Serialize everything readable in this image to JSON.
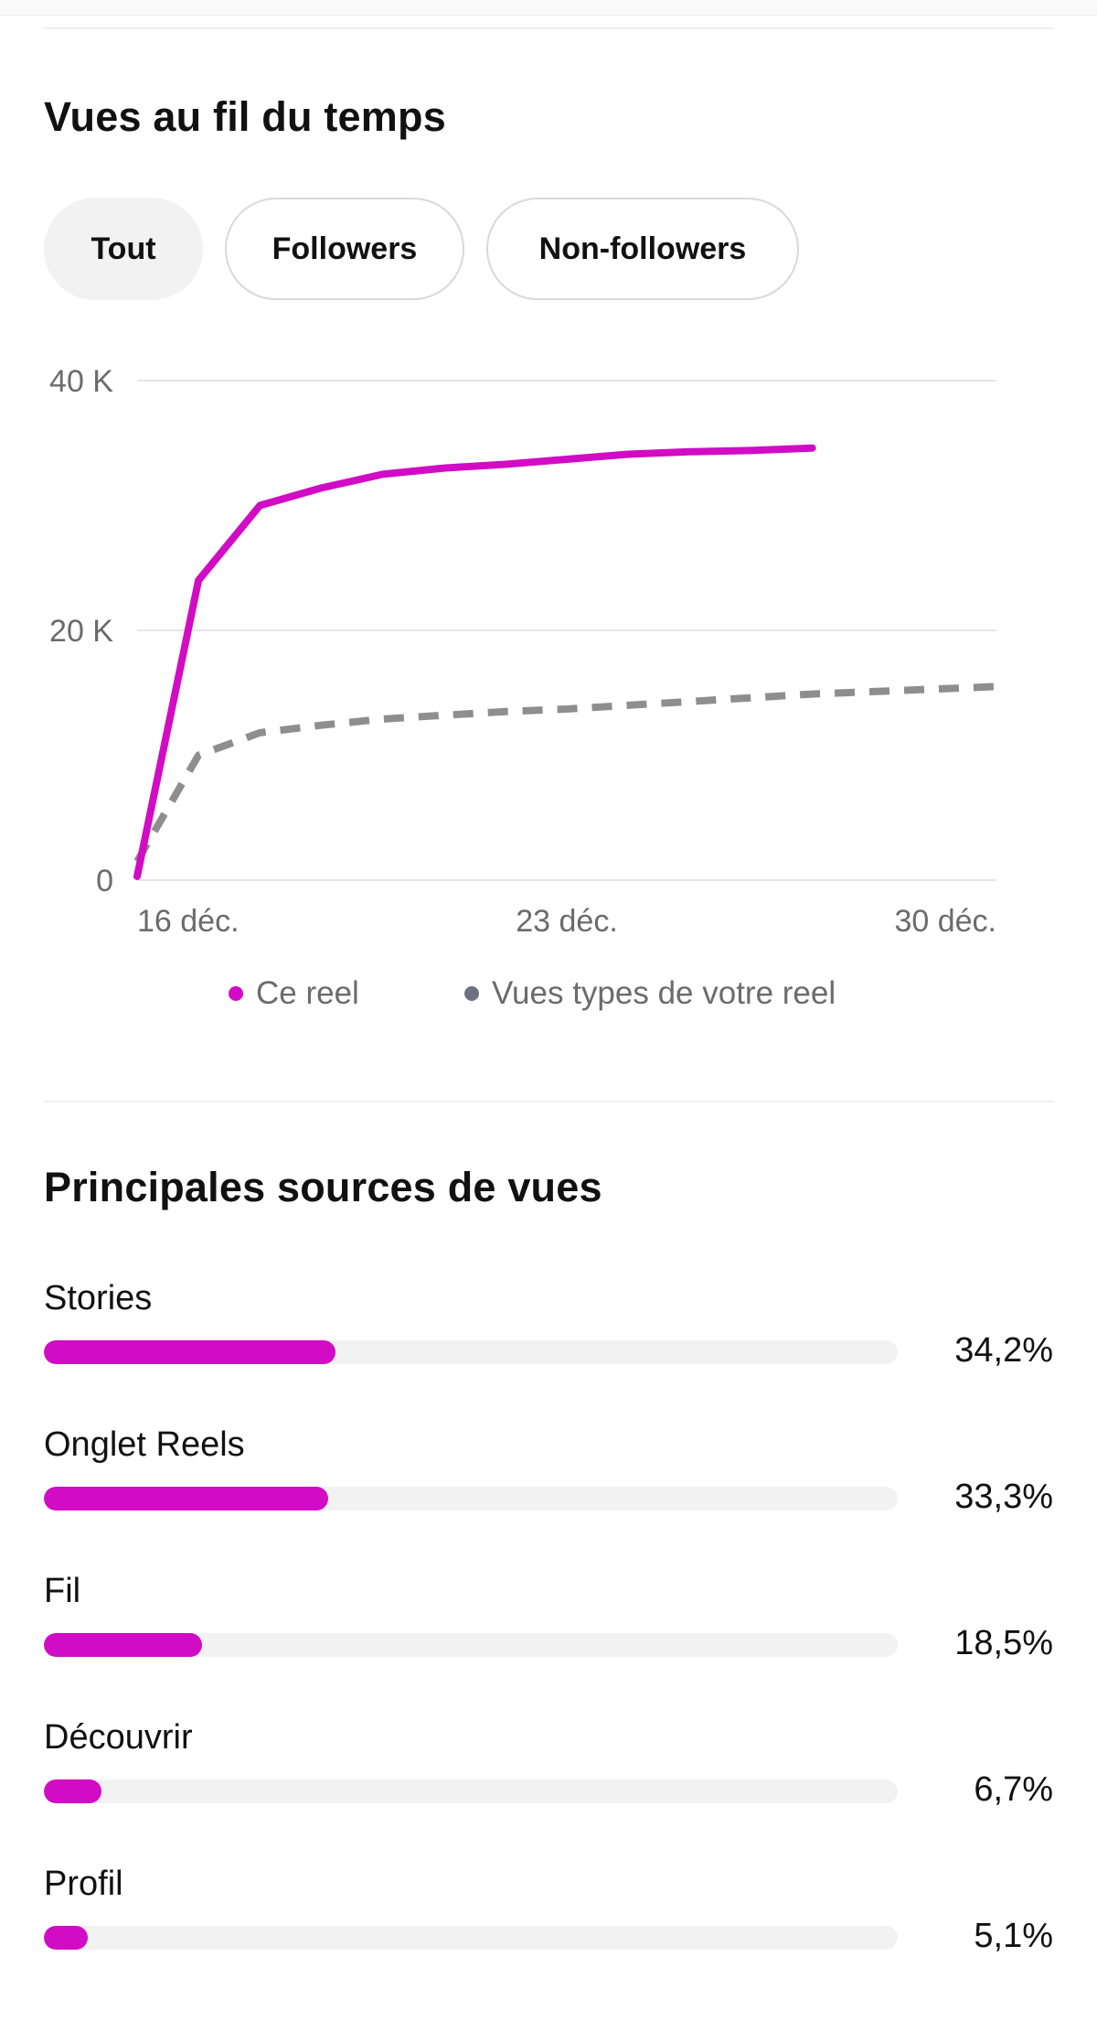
{
  "views_section": {
    "title": "Vues au fil du temps",
    "filters": [
      {
        "label": "Tout",
        "active": true
      },
      {
        "label": "Followers",
        "active": false
      },
      {
        "label": "Non-followers",
        "active": false
      }
    ]
  },
  "chart_data": {
    "type": "line",
    "x_tick_labels": [
      "16 déc.",
      "23 déc.",
      "30 déc."
    ],
    "y_tick_labels": [
      "40 K",
      "20 K",
      "0"
    ],
    "ylim": [
      0,
      40000
    ],
    "grid": true,
    "legend_position": "bottom",
    "series": [
      {
        "name": "Ce reel",
        "color": "#d20bc4",
        "style": "solid",
        "x": [
          16,
          17,
          18,
          19,
          20,
          21,
          22,
          23,
          24,
          25,
          26,
          27
        ],
        "y": [
          300,
          24000,
          30000,
          31400,
          32500,
          33000,
          33300,
          33700,
          34100,
          34300,
          34400,
          34600
        ]
      },
      {
        "name": "Vues types de votre reel",
        "color": "#8e8e8e",
        "legend_color": "#6b7280",
        "style": "dashed",
        "x": [
          16,
          17,
          18,
          19,
          20,
          21,
          22,
          23,
          24,
          25,
          26,
          27,
          28,
          29,
          30
        ],
        "y": [
          1500,
          10000,
          11800,
          12400,
          12900,
          13200,
          13500,
          13700,
          14000,
          14300,
          14600,
          14900,
          15100,
          15300,
          15500
        ]
      }
    ]
  },
  "sources_section": {
    "title": "Principales sources de vues",
    "items": [
      {
        "label": "Stories",
        "value": "34,2%",
        "fraction": 0.342
      },
      {
        "label": "Onglet Reels",
        "value": "33,3%",
        "fraction": 0.333
      },
      {
        "label": "Fil",
        "value": "18,5%",
        "fraction": 0.185
      },
      {
        "label": "Découvrir",
        "value": "6,7%",
        "fraction": 0.067
      },
      {
        "label": "Profil",
        "value": "5,1%",
        "fraction": 0.051
      }
    ]
  }
}
